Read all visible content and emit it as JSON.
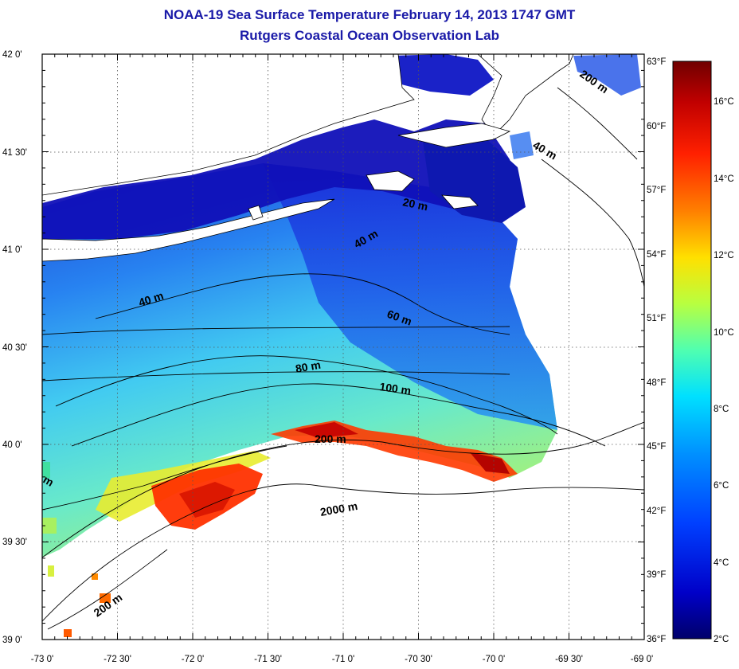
{
  "title": {
    "line1": "NOAA-19 Sea Surface Temperature February 14, 2013 1747 GMT",
    "line2": "Rutgers Coastal Ocean Observation Lab"
  },
  "axes": {
    "lat_labels": [
      "42 0'",
      "41 30'",
      "41 0'",
      "40 30'",
      "40 0'",
      "39 30'",
      "39 0'"
    ],
    "lon_labels": [
      "-73 0'",
      "-72 30'",
      "-72 0'",
      "-71 30'",
      "-71 0'",
      "-70 30'",
      "-70 0'",
      "-69 30'",
      "-69 0'"
    ]
  },
  "colorbar": {
    "fahrenheit_labels": [
      "63°F",
      "60°F",
      "57°F",
      "54°F",
      "51°F",
      "48°F",
      "45°F",
      "42°F",
      "39°F",
      "36°F"
    ],
    "celsius_labels": [
      "16°C",
      "14°C",
      "12°C",
      "10°C",
      "8°C",
      "6°C",
      "4°C",
      "2°C"
    ],
    "colors": [
      "#7a0000",
      "#c40000",
      "#ff2a00",
      "#ff7a00",
      "#ffd200",
      "#c8ff30",
      "#5affa0",
      "#00e0ff",
      "#0090ff",
      "#0030ff",
      "#0000c0",
      "#00006a"
    ]
  },
  "contour_labels": [
    "200 m",
    "40 m",
    "20 m",
    "40 m",
    "60 m",
    "80 m",
    "100 m",
    "40 m",
    "200 m",
    "2000 m",
    "200 m",
    "m"
  ]
}
